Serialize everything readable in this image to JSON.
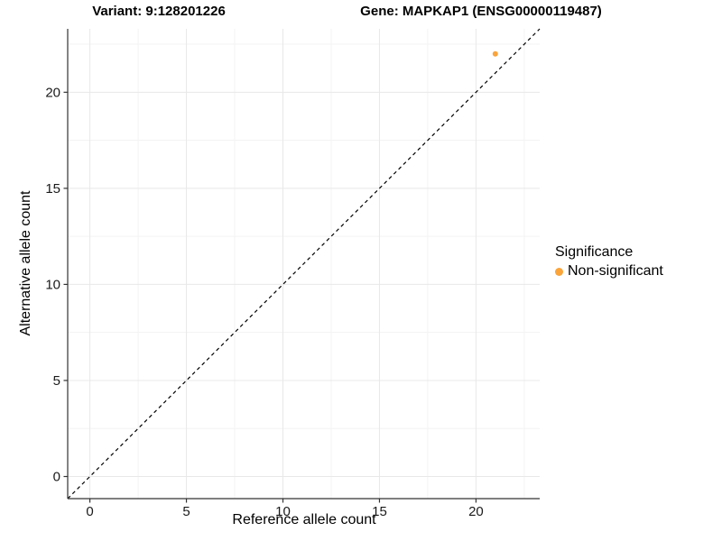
{
  "chart_data": {
    "type": "scatter",
    "titles": {
      "variant": "Variant: 9:128201226",
      "gene": "Gene: MAPKAP1 (ENSG00000119487)"
    },
    "xlabel": "Reference allele count",
    "ylabel": "Alternative allele count",
    "xlim": [
      -1.15,
      23.3
    ],
    "ylim": [
      -1.15,
      23.3
    ],
    "xticks": [
      0,
      5,
      10,
      15,
      20
    ],
    "yticks": [
      0,
      5,
      10,
      15,
      20
    ],
    "minor_grid_step": 2.5,
    "grid": "major+minor",
    "identity_line": {
      "slope": 1,
      "intercept": 0,
      "linetype": "dashed",
      "color": "#000000"
    },
    "series": [
      {
        "name": "Non-significant",
        "color": "#FAA43A",
        "point_radius": 3,
        "points": [
          {
            "x": 21,
            "y": 22
          }
        ]
      }
    ],
    "legend": {
      "title": "Significance",
      "position": "right",
      "items": [
        {
          "label": "Non-significant",
          "color": "#FAA43A"
        }
      ]
    },
    "colors": {
      "panel_bg": "#FFFFFF",
      "grid_major": "#E8E8E8",
      "grid_minor": "#F3F3F3",
      "axis_line": "#333333",
      "tick_text": "#1A1A1A"
    }
  }
}
